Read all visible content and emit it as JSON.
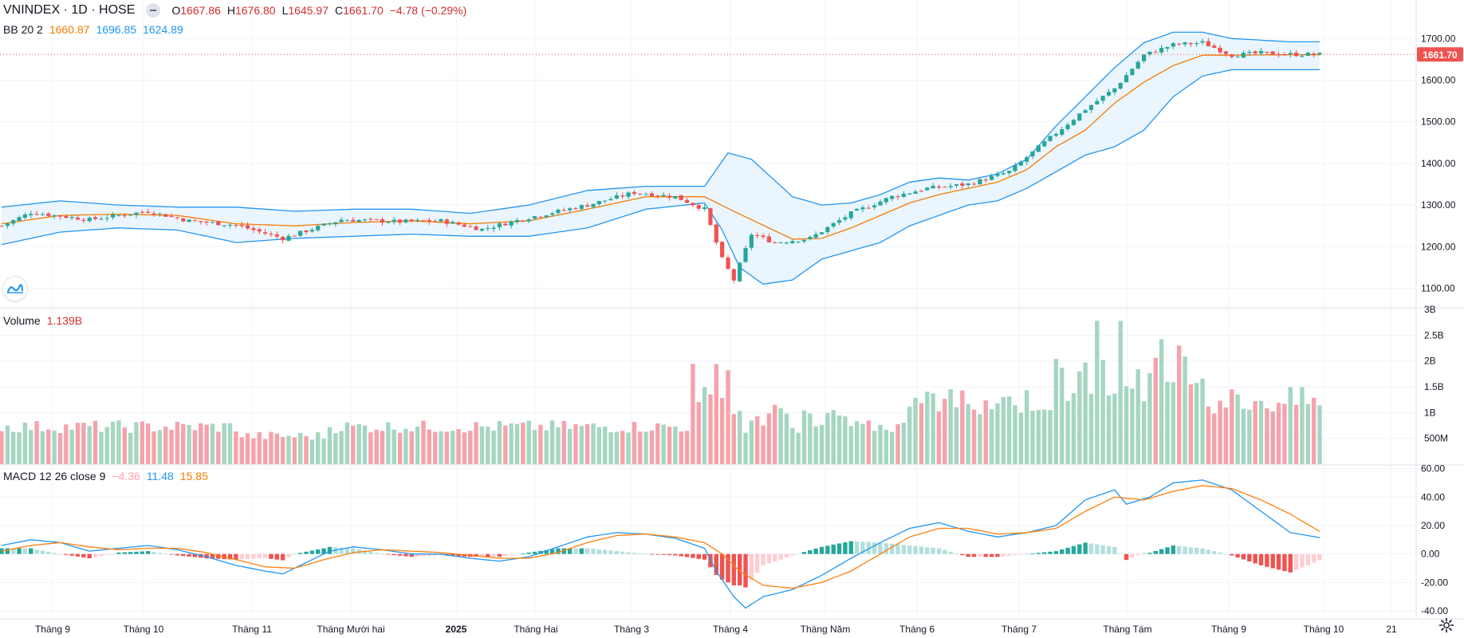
{
  "legend_main": {
    "symbol": "VNINDEX",
    "interval": "1D",
    "exchange": "HOSE",
    "open_label": "O",
    "open": "1667.86",
    "high_label": "H",
    "high": "1676.80",
    "low_label": "L",
    "low": "1645.97",
    "close_label": "C",
    "close": "1661.70",
    "change": "−4.78 (−0.29%)"
  },
  "legend_bb": {
    "label": "BB 20 2",
    "basis": "1660.87",
    "upper": "1696.85",
    "lower": "1624.89"
  },
  "legend_volume": {
    "label": "Volume",
    "value": "1.139B"
  },
  "legend_macd": {
    "label": "MACD 12 26 close 9",
    "hist": "−4.36",
    "macd": "11.48",
    "signal": "15.85"
  },
  "colors": {
    "up": "#26a69a",
    "down": "#ef5350",
    "vol_up": "#a5d6c1",
    "vol_down": "#f5a3ab",
    "bb_band": "#2196f3",
    "bb_basis": "#f57c00",
    "bb_fill": "#e3f2fd",
    "macd_line": "#2196f3",
    "signal_line": "#ff7f0e",
    "hist_up_strong": "#26a69a",
    "hist_up_weak": "#b2dfdb",
    "hist_down_strong": "#ef5350",
    "hist_down_weak": "#ffcdd2",
    "grid": "#f0f3fa",
    "price_line": "#ef5350"
  },
  "chart_data": [
    {
      "type": "candlestick",
      "title": "VNINDEX 1D HOSE",
      "y_ticks": [
        "1100.00",
        "1200.00",
        "1300.00",
        "1400.00",
        "1500.00",
        "1600.00",
        "1700.00"
      ],
      "ylim": [
        1055,
        1735
      ],
      "x_ticks": [
        "Tháng 9",
        "Tháng 10",
        "Tháng 11",
        "Tháng Mười hai",
        "2025",
        "Tháng Hai",
        "Tháng 3",
        "Tháng 4",
        "Tháng Năm",
        "Tháng 6",
        "Tháng 7",
        "Tháng Tám",
        "Tháng 9",
        "Tháng 10",
        "21"
      ],
      "last_price": 1661.7,
      "last_price_label": "1661.70",
      "close_anchors": [
        [
          0,
          1250
        ],
        [
          5,
          1282
        ],
        [
          15,
          1265
        ],
        [
          25,
          1285
        ],
        [
          32,
          1262
        ],
        [
          40,
          1252
        ],
        [
          48,
          1220
        ],
        [
          58,
          1265
        ],
        [
          68,
          1260
        ],
        [
          75,
          1262
        ],
        [
          82,
          1242
        ],
        [
          90,
          1270
        ],
        [
          100,
          1300
        ],
        [
          108,
          1330
        ],
        [
          115,
          1320
        ],
        [
          120,
          1290
        ],
        [
          123,
          1170
        ],
        [
          125,
          1120
        ],
        [
          128,
          1230
        ],
        [
          132,
          1210
        ],
        [
          138,
          1220
        ],
        [
          145,
          1280
        ],
        [
          152,
          1320
        ],
        [
          158,
          1340
        ],
        [
          165,
          1350
        ],
        [
          172,
          1380
        ],
        [
          178,
          1450
        ],
        [
          185,
          1530
        ],
        [
          190,
          1580
        ],
        [
          195,
          1660
        ],
        [
          200,
          1685
        ],
        [
          205,
          1690
        ],
        [
          210,
          1660
        ],
        [
          215,
          1665
        ],
        [
          220,
          1662
        ]
      ],
      "bb_upper_anchors": [
        [
          0,
          1295
        ],
        [
          10,
          1310
        ],
        [
          20,
          1300
        ],
        [
          30,
          1295
        ],
        [
          40,
          1295
        ],
        [
          50,
          1285
        ],
        [
          60,
          1290
        ],
        [
          70,
          1290
        ],
        [
          80,
          1280
        ],
        [
          90,
          1300
        ],
        [
          100,
          1335
        ],
        [
          110,
          1345
        ],
        [
          120,
          1345
        ],
        [
          124,
          1425
        ],
        [
          128,
          1410
        ],
        [
          135,
          1320
        ],
        [
          140,
          1300
        ],
        [
          145,
          1305
        ],
        [
          150,
          1325
        ],
        [
          155,
          1355
        ],
        [
          160,
          1365
        ],
        [
          165,
          1360
        ],
        [
          170,
          1375
        ],
        [
          175,
          1410
        ],
        [
          180,
          1490
        ],
        [
          185,
          1560
        ],
        [
          190,
          1630
        ],
        [
          195,
          1690
        ],
        [
          200,
          1715
        ],
        [
          205,
          1715
        ],
        [
          210,
          1700
        ],
        [
          220,
          1692
        ]
      ],
      "bb_basis_anchors": [
        [
          0,
          1255
        ],
        [
          10,
          1275
        ],
        [
          20,
          1278
        ],
        [
          30,
          1275
        ],
        [
          40,
          1255
        ],
        [
          50,
          1250
        ],
        [
          60,
          1258
        ],
        [
          70,
          1262
        ],
        [
          80,
          1255
        ],
        [
          90,
          1262
        ],
        [
          100,
          1290
        ],
        [
          110,
          1320
        ],
        [
          120,
          1320
        ],
        [
          125,
          1285
        ],
        [
          135,
          1218
        ],
        [
          140,
          1220
        ],
        [
          145,
          1245
        ],
        [
          150,
          1275
        ],
        [
          155,
          1305
        ],
        [
          160,
          1325
        ],
        [
          165,
          1340
        ],
        [
          170,
          1355
        ],
        [
          175,
          1385
        ],
        [
          180,
          1440
        ],
        [
          185,
          1480
        ],
        [
          190,
          1545
        ],
        [
          195,
          1595
        ],
        [
          200,
          1635
        ],
        [
          205,
          1660
        ],
        [
          210,
          1660
        ],
        [
          220,
          1661
        ]
      ],
      "bb_lower_anchors": [
        [
          0,
          1205
        ],
        [
          10,
          1235
        ],
        [
          20,
          1245
        ],
        [
          30,
          1240
        ],
        [
          40,
          1210
        ],
        [
          50,
          1220
        ],
        [
          60,
          1225
        ],
        [
          70,
          1230
        ],
        [
          80,
          1225
        ],
        [
          90,
          1225
        ],
        [
          100,
          1245
        ],
        [
          110,
          1290
        ],
        [
          120,
          1305
        ],
        [
          123,
          1240
        ],
        [
          126,
          1150
        ],
        [
          130,
          1110
        ],
        [
          135,
          1120
        ],
        [
          140,
          1170
        ],
        [
          145,
          1190
        ],
        [
          150,
          1210
        ],
        [
          155,
          1250
        ],
        [
          160,
          1275
        ],
        [
          165,
          1300
        ],
        [
          170,
          1310
        ],
        [
          175,
          1340
        ],
        [
          180,
          1380
        ],
        [
          185,
          1420
        ],
        [
          190,
          1440
        ],
        [
          195,
          1480
        ],
        [
          200,
          1560
        ],
        [
          205,
          1610
        ],
        [
          210,
          1625
        ],
        [
          220,
          1625
        ]
      ]
    },
    {
      "type": "bar",
      "title": "Volume",
      "y_ticks": [
        "500M",
        "1B",
        "1.5B",
        "2B",
        "2.5B",
        "3B"
      ],
      "ylim": [
        0,
        3000000000
      ],
      "last_value": "1.139B"
    },
    {
      "type": "line",
      "title": "MACD 12 26 close 9",
      "y_ticks": [
        "-40.00",
        "-20.00",
        "0.00",
        "20.00",
        "40.00",
        "60.00"
      ],
      "ylim": [
        -45,
        62
      ],
      "macd_anchors": [
        [
          0,
          6
        ],
        [
          5,
          10
        ],
        [
          10,
          8
        ],
        [
          15,
          2
        ],
        [
          20,
          4
        ],
        [
          25,
          6
        ],
        [
          30,
          3
        ],
        [
          35,
          -2
        ],
        [
          40,
          -8
        ],
        [
          45,
          -12
        ],
        [
          48,
          -14
        ],
        [
          52,
          -6
        ],
        [
          56,
          2
        ],
        [
          60,
          5
        ],
        [
          65,
          3
        ],
        [
          70,
          0
        ],
        [
          75,
          0
        ],
        [
          80,
          -3
        ],
        [
          85,
          -5
        ],
        [
          90,
          -2
        ],
        [
          95,
          5
        ],
        [
          100,
          12
        ],
        [
          105,
          15
        ],
        [
          110,
          14
        ],
        [
          115,
          11
        ],
        [
          120,
          4
        ],
        [
          122,
          -12
        ],
        [
          125,
          -30
        ],
        [
          127,
          -38
        ],
        [
          130,
          -30
        ],
        [
          135,
          -25
        ],
        [
          140,
          -15
        ],
        [
          145,
          -3
        ],
        [
          150,
          8
        ],
        [
          155,
          18
        ],
        [
          160,
          22
        ],
        [
          165,
          16
        ],
        [
          170,
          12
        ],
        [
          175,
          15
        ],
        [
          180,
          20
        ],
        [
          185,
          38
        ],
        [
          190,
          45
        ],
        [
          192,
          35
        ],
        [
          196,
          40
        ],
        [
          200,
          50
        ],
        [
          205,
          52
        ],
        [
          210,
          45
        ],
        [
          215,
          30
        ],
        [
          220,
          15
        ],
        [
          225,
          11.5
        ]
      ],
      "signal_anchors": [
        [
          0,
          2
        ],
        [
          5,
          6
        ],
        [
          10,
          8
        ],
        [
          15,
          5
        ],
        [
          20,
          3
        ],
        [
          25,
          4
        ],
        [
          30,
          4
        ],
        [
          35,
          1
        ],
        [
          40,
          -4
        ],
        [
          45,
          -9
        ],
        [
          50,
          -10
        ],
        [
          55,
          -4
        ],
        [
          60,
          1
        ],
        [
          65,
          3
        ],
        [
          70,
          2
        ],
        [
          75,
          1
        ],
        [
          80,
          -1
        ],
        [
          85,
          -3
        ],
        [
          90,
          -3
        ],
        [
          95,
          1
        ],
        [
          100,
          8
        ],
        [
          105,
          13
        ],
        [
          110,
          14
        ],
        [
          115,
          12
        ],
        [
          120,
          8
        ],
        [
          123,
          0
        ],
        [
          126,
          -12
        ],
        [
          130,
          -22
        ],
        [
          135,
          -24
        ],
        [
          140,
          -20
        ],
        [
          145,
          -12
        ],
        [
          150,
          0
        ],
        [
          155,
          12
        ],
        [
          160,
          18
        ],
        [
          165,
          18
        ],
        [
          170,
          14
        ],
        [
          175,
          15
        ],
        [
          180,
          18
        ],
        [
          185,
          30
        ],
        [
          190,
          40
        ],
        [
          195,
          38
        ],
        [
          200,
          44
        ],
        [
          205,
          48
        ],
        [
          210,
          46
        ],
        [
          215,
          38
        ],
        [
          220,
          28
        ],
        [
          225,
          15.85
        ]
      ]
    }
  ]
}
